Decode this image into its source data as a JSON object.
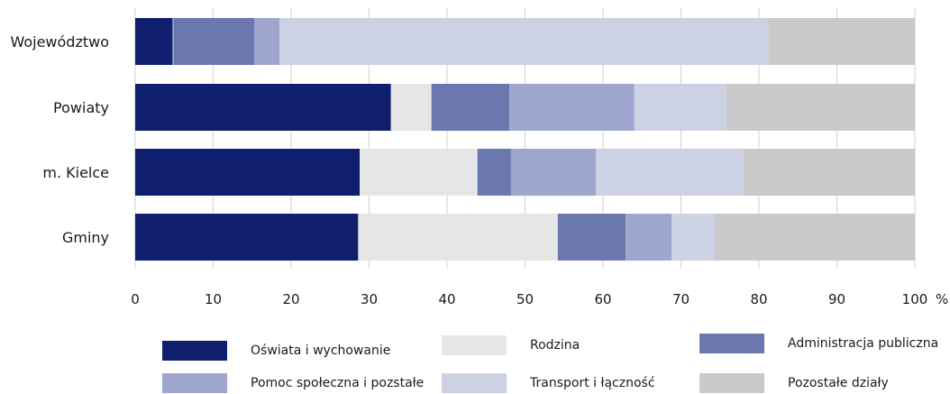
{
  "chart_data": {
    "type": "bar",
    "orientation": "horizontal",
    "stacked": true,
    "categories": [
      "Województwo",
      "Powiaty",
      "m. Kielce",
      "Gminy"
    ],
    "xlim": [
      0,
      100
    ],
    "xticks": [
      0,
      10,
      20,
      30,
      40,
      50,
      60,
      70,
      80,
      90,
      100
    ],
    "unit": "%",
    "grid": true,
    "legend_position": "bottom",
    "series": [
      {
        "name": "Oświata i wychowanie",
        "color": "#0f1f6e",
        "values": [
          4.8,
          32.8,
          28.8,
          28.6
        ]
      },
      {
        "name": "Rodzina",
        "color": "#e6e6e6",
        "values": [
          0.1,
          5.2,
          15.1,
          25.6
        ]
      },
      {
        "name": "Administracja publiczna",
        "color": "#6b78b0",
        "values": [
          10.4,
          10.0,
          4.3,
          8.7
        ]
      },
      {
        "name": "Pomoc społeczna i pozstałe",
        "color": "#9ea6cd",
        "values": [
          3.2,
          16.0,
          10.9,
          5.9
        ]
      },
      {
        "name": "Transport i łączność",
        "color": "#cdd1e4",
        "values": [
          62.7,
          11.8,
          18.9,
          5.5
        ]
      },
      {
        "name": "Pozostałe działy",
        "color": "#c9c9c9",
        "values": [
          18.8,
          24.2,
          22.0,
          25.7
        ]
      }
    ]
  }
}
